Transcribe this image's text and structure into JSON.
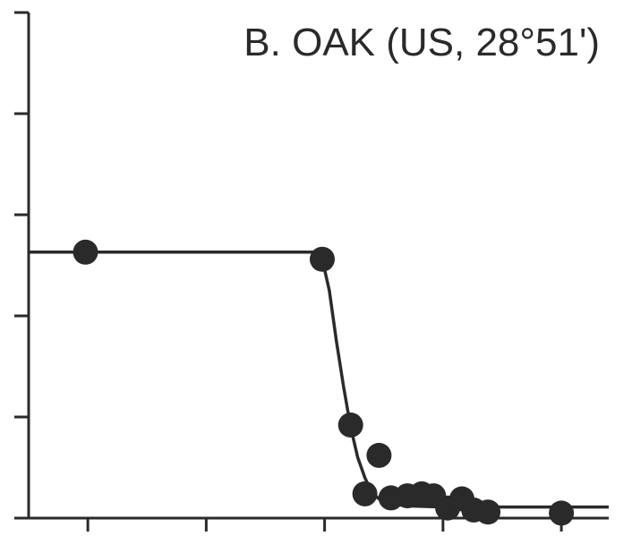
{
  "chart_data": {
    "type": "scatter",
    "title": "B. OAK (US, 28°51')",
    "xlabel": "",
    "ylabel": "",
    "xlim": [
      0,
      245
    ],
    "ylim": [
      0,
      5
    ],
    "x_ticks": [
      25,
      75,
      125,
      175,
      225
    ],
    "y_ticks": [
      0,
      1,
      2,
      3,
      4,
      5
    ],
    "tick_labels_shown": false,
    "grid": false,
    "legend": "none",
    "series": [
      {
        "kind": "points",
        "x": [
          24,
          124,
          136,
          142,
          148,
          153,
          160,
          166,
          171,
          177,
          183,
          188,
          194,
          225
        ],
        "y": [
          2.63,
          2.56,
          0.92,
          0.24,
          0.62,
          0.2,
          0.22,
          0.24,
          0.22,
          0.1,
          0.19,
          0.08,
          0.06,
          0.05
        ]
      },
      {
        "kind": "fit-line",
        "x": [
          0,
          121,
          124,
          127,
          130,
          133,
          136,
          139,
          142,
          145,
          150,
          160,
          175,
          245
        ],
        "y": [
          2.63,
          2.63,
          2.56,
          2.25,
          1.75,
          1.3,
          0.9,
          0.6,
          0.4,
          0.25,
          0.15,
          0.12,
          0.11,
          0.11
        ]
      }
    ]
  },
  "colors": {
    "ink": "#2a2a2a",
    "background": "#ffffff"
  }
}
